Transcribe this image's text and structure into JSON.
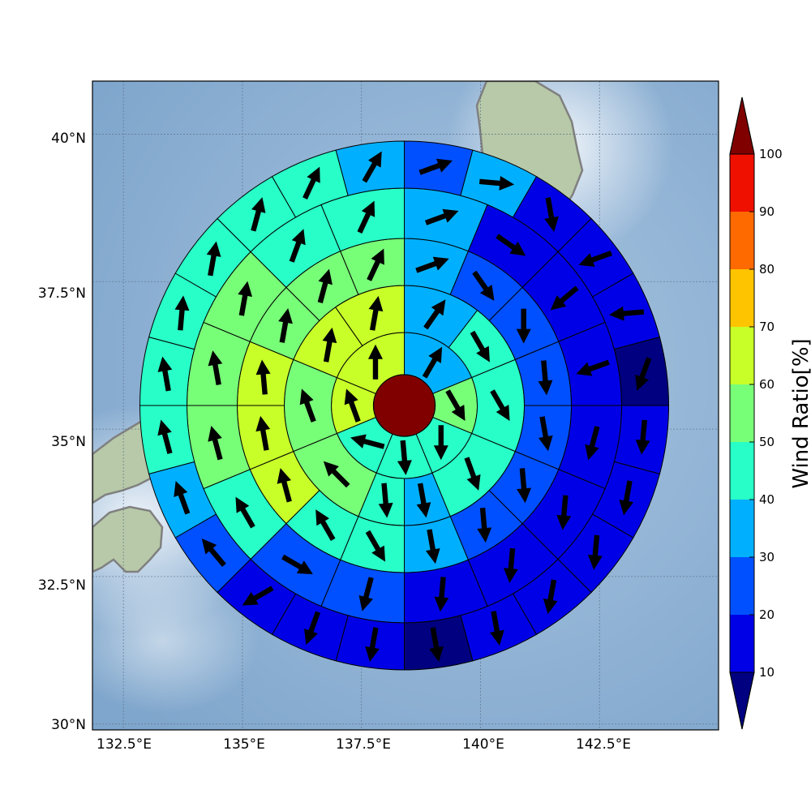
{
  "map": {
    "lat_ticks": [
      "30°N",
      "32.5°N",
      "35°N",
      "37.5°N",
      "40°N"
    ],
    "lon_ticks": [
      "132.5°E",
      "135°E",
      "137.5°E",
      "140°E",
      "142.5°E"
    ],
    "lat_range": [
      29.9,
      40.9
    ],
    "lon_range": [
      131.85,
      145.0
    ],
    "center": {
      "lon": 138.4,
      "lat": 35.4
    },
    "ocean_color": "#8fb3d6",
    "coastline_color": "#808080"
  },
  "colorbar": {
    "label": "Wind Ratio[%]",
    "tick_labels": [
      "10",
      "20",
      "30",
      "40",
      "50",
      "60",
      "70",
      "80",
      "90",
      "100"
    ],
    "bands": [
      {
        "from": 10,
        "to": 20,
        "color": "#0000e6"
      },
      {
        "from": 20,
        "to": 30,
        "color": "#0050ff"
      },
      {
        "from": 30,
        "to": 40,
        "color": "#00b0ff"
      },
      {
        "from": 40,
        "to": 50,
        "color": "#28ffc8"
      },
      {
        "from": 50,
        "to": 60,
        "color": "#78ff78"
      },
      {
        "from": 60,
        "to": 70,
        "color": "#c8ff28"
      },
      {
        "from": 70,
        "to": 80,
        "color": "#ffc400"
      },
      {
        "from": 80,
        "to": 90,
        "color": "#ff6a00"
      },
      {
        "from": 90,
        "to": 100,
        "color": "#f01000"
      }
    ],
    "under_color": "#000080",
    "over_color": "#800000"
  },
  "chart_data": {
    "type": "heatmap",
    "description_units": "wind ratio % per polar sector; arrow angle = compass direction arrow points (deg, 0=north, 90=east)",
    "center_value_color": "#800000",
    "rings": [
      {
        "ring": 1,
        "sectors": [
          {
            "a0": 0,
            "a1": 67.5,
            "value": 35,
            "arrow": 30
          },
          {
            "a0": 67.5,
            "a1": 112.5,
            "value": 55,
            "arrow": 150
          },
          {
            "a0": 112.5,
            "a1": 157.5,
            "value": 45,
            "arrow": 180
          },
          {
            "a0": 157.5,
            "a1": 202.5,
            "value": 45,
            "arrow": 175
          },
          {
            "a0": 202.5,
            "a1": 247.5,
            "value": 45,
            "arrow": 285
          },
          {
            "a0": 247.5,
            "a1": 292.5,
            "value": 65,
            "arrow": 340
          },
          {
            "a0": 292.5,
            "a1": 360,
            "value": 65,
            "arrow": 0
          }
        ]
      },
      {
        "ring": 2,
        "sectors": [
          {
            "a0": 0,
            "a1": 37.5,
            "value": 35,
            "arrow": 35
          },
          {
            "a0": 37.5,
            "a1": 67.5,
            "value": 45,
            "arrow": 150
          },
          {
            "a0": 67.5,
            "a1": 112.5,
            "value": 45,
            "arrow": 150
          },
          {
            "a0": 112.5,
            "a1": 157.5,
            "value": 45,
            "arrow": 160
          },
          {
            "a0": 157.5,
            "a1": 180,
            "value": 35,
            "arrow": 170
          },
          {
            "a0": 180,
            "a1": 202.5,
            "value": 45,
            "arrow": 175
          },
          {
            "a0": 202.5,
            "a1": 247.5,
            "value": 55,
            "arrow": 315
          },
          {
            "a0": 247.5,
            "a1": 292.5,
            "value": 55,
            "arrow": 340
          },
          {
            "a0": 292.5,
            "a1": 325,
            "value": 65,
            "arrow": 10
          },
          {
            "a0": 325,
            "a1": 360,
            "value": 65,
            "arrow": 10
          }
        ]
      },
      {
        "ring": 3,
        "sectors": [
          {
            "a0": 0,
            "a1": 22.5,
            "value": 35,
            "arrow": 70
          },
          {
            "a0": 22.5,
            "a1": 45,
            "value": 25,
            "arrow": 145
          },
          {
            "a0": 45,
            "a1": 67.5,
            "value": 25,
            "arrow": 180
          },
          {
            "a0": 67.5,
            "a1": 90,
            "value": 25,
            "arrow": 175
          },
          {
            "a0": 90,
            "a1": 112.5,
            "value": 25,
            "arrow": 170
          },
          {
            "a0": 112.5,
            "a1": 135,
            "value": 25,
            "arrow": 175
          },
          {
            "a0": 135,
            "a1": 157.5,
            "value": 25,
            "arrow": 175
          },
          {
            "a0": 157.5,
            "a1": 180,
            "value": 35,
            "arrow": 170
          },
          {
            "a0": 180,
            "a1": 202.5,
            "value": 45,
            "arrow": 150
          },
          {
            "a0": 202.5,
            "a1": 225,
            "value": 45,
            "arrow": 330
          },
          {
            "a0": 225,
            "a1": 247.5,
            "value": 65,
            "arrow": 345
          },
          {
            "a0": 247.5,
            "a1": 270,
            "value": 65,
            "arrow": 350
          },
          {
            "a0": 270,
            "a1": 292.5,
            "value": 65,
            "arrow": 355
          },
          {
            "a0": 292.5,
            "a1": 315,
            "value": 55,
            "arrow": 10
          },
          {
            "a0": 315,
            "a1": 337.5,
            "value": 55,
            "arrow": 15
          },
          {
            "a0": 337.5,
            "a1": 360,
            "value": 55,
            "arrow": 25
          }
        ]
      },
      {
        "ring": 4,
        "sectors": [
          {
            "a0": 0,
            "a1": 22.5,
            "value": 35,
            "arrow": 70
          },
          {
            "a0": 22.5,
            "a1": 45,
            "value": 15,
            "arrow": 125
          },
          {
            "a0": 45,
            "a1": 67.5,
            "value": 15,
            "arrow": 230
          },
          {
            "a0": 67.5,
            "a1": 90,
            "value": 15,
            "arrow": 250
          },
          {
            "a0": 90,
            "a1": 112.5,
            "value": 15,
            "arrow": 195
          },
          {
            "a0": 112.5,
            "a1": 135,
            "value": 15,
            "arrow": 185
          },
          {
            "a0": 135,
            "a1": 157.5,
            "value": 15,
            "arrow": 185
          },
          {
            "a0": 157.5,
            "a1": 180,
            "value": 15,
            "arrow": 185
          },
          {
            "a0": 180,
            "a1": 202.5,
            "value": 25,
            "arrow": 195
          },
          {
            "a0": 202.5,
            "a1": 225,
            "value": 25,
            "arrow": 120
          },
          {
            "a0": 225,
            "a1": 247.5,
            "value": 45,
            "arrow": 330
          },
          {
            "a0": 247.5,
            "a1": 270,
            "value": 55,
            "arrow": 345
          },
          {
            "a0": 270,
            "a1": 292.5,
            "value": 55,
            "arrow": 350
          },
          {
            "a0": 292.5,
            "a1": 315,
            "value": 55,
            "arrow": 10
          },
          {
            "a0": 315,
            "a1": 337.5,
            "value": 45,
            "arrow": 20
          },
          {
            "a0": 337.5,
            "a1": 360,
            "value": 45,
            "arrow": 25
          }
        ]
      },
      {
        "ring": 5,
        "sectors": [
          {
            "a0": 0,
            "a1": 15,
            "value": 25,
            "arrow": 70
          },
          {
            "a0": 15,
            "a1": 30,
            "value": 35,
            "arrow": 95
          },
          {
            "a0": 30,
            "a1": 45,
            "value": 15,
            "arrow": 170
          },
          {
            "a0": 45,
            "a1": 60,
            "value": 15,
            "arrow": 250
          },
          {
            "a0": 60,
            "a1": 75,
            "value": 15,
            "arrow": 265
          },
          {
            "a0": 75,
            "a1": 90,
            "value": 5,
            "arrow": 200
          },
          {
            "a0": 90,
            "a1": 105,
            "value": 15,
            "arrow": 185
          },
          {
            "a0": 105,
            "a1": 120,
            "value": 15,
            "arrow": 190
          },
          {
            "a0": 120,
            "a1": 135,
            "value": 15,
            "arrow": 185
          },
          {
            "a0": 135,
            "a1": 150,
            "value": 15,
            "arrow": 190
          },
          {
            "a0": 150,
            "a1": 165,
            "value": 15,
            "arrow": 170
          },
          {
            "a0": 165,
            "a1": 180,
            "value": 5,
            "arrow": 170
          },
          {
            "a0": 180,
            "a1": 195,
            "value": 15,
            "arrow": 190
          },
          {
            "a0": 195,
            "a1": 210,
            "value": 15,
            "arrow": 200
          },
          {
            "a0": 210,
            "a1": 225,
            "value": 15,
            "arrow": 240
          },
          {
            "a0": 225,
            "a1": 240,
            "value": 20,
            "arrow": 320
          },
          {
            "a0": 240,
            "a1": 255,
            "value": 35,
            "arrow": 340
          },
          {
            "a0": 255,
            "a1": 270,
            "value": 45,
            "arrow": 345
          },
          {
            "a0": 270,
            "a1": 285,
            "value": 45,
            "arrow": 350
          },
          {
            "a0": 285,
            "a1": 300,
            "value": 45,
            "arrow": 5
          },
          {
            "a0": 300,
            "a1": 315,
            "value": 45,
            "arrow": 10
          },
          {
            "a0": 315,
            "a1": 330,
            "value": 45,
            "arrow": 15
          },
          {
            "a0": 330,
            "a1": 345,
            "value": 45,
            "arrow": 25
          },
          {
            "a0": 345,
            "a1": 360,
            "value": 35,
            "arrow": 30
          }
        ]
      }
    ]
  }
}
